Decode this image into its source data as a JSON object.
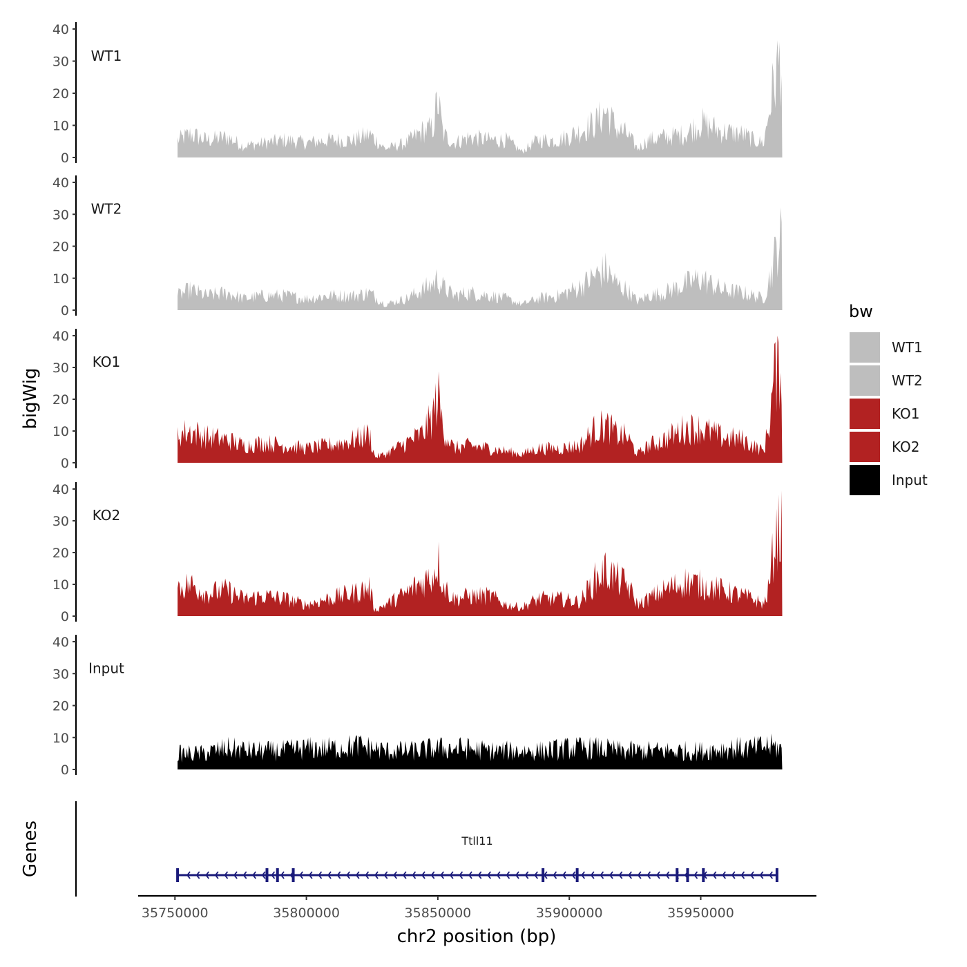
{
  "chart_data": {
    "type": "area",
    "ylabel": "bigWig",
    "xlabel": "chr2 position (bp)",
    "xlim": [
      35736000,
      35994000
    ],
    "ylim": [
      0,
      40
    ],
    "y_ticks": [
      "0",
      "10",
      "20",
      "30",
      "40"
    ],
    "x_ticks": [
      {
        "value": 35750000,
        "label": "35750000"
      },
      {
        "value": 35800000,
        "label": "35800000"
      },
      {
        "value": 35850000,
        "label": "35850000"
      },
      {
        "value": 35900000,
        "label": "35900000"
      },
      {
        "value": 35950000,
        "label": "35950000"
      }
    ],
    "legend": {
      "title": "bw",
      "entries": [
        {
          "label": "WT1",
          "color": "#BEBEBE"
        },
        {
          "label": "WT2",
          "color": "#BEBEBE"
        },
        {
          "label": "KO1",
          "color": "#B22222"
        },
        {
          "label": "KO2",
          "color": "#B22222"
        },
        {
          "label": "Input",
          "color": "#000000"
        }
      ]
    },
    "data_range": [
      35751000,
      35981000
    ],
    "series": [
      {
        "name": "WT1",
        "color": "#BEBEBE",
        "x": [
          35751000,
          35756000,
          35762000,
          35770000,
          35776000,
          35784000,
          35792000,
          35800000,
          35808000,
          35818000,
          35824000,
          35830000,
          35838000,
          35844000,
          35848000,
          35850000,
          35852000,
          35856000,
          35862000,
          35870000,
          35876000,
          35882000,
          35888000,
          35896000,
          35904000,
          35910000,
          35914000,
          35918000,
          35922000,
          35926000,
          35930000,
          35936000,
          35944000,
          35950000,
          35958000,
          35966000,
          35970000,
          35974000,
          35977000,
          35979000,
          35981000
        ],
        "y": [
          6,
          8,
          6,
          7,
          4,
          5,
          6,
          5,
          6,
          6,
          8,
          3,
          5,
          9,
          10,
          20,
          8,
          5,
          7,
          6,
          6,
          2,
          6,
          6,
          9,
          12,
          16,
          10,
          8,
          3,
          6,
          7,
          8,
          12,
          9,
          8,
          6,
          5,
          22,
          30,
          36
        ]
      },
      {
        "name": "WT2",
        "color": "#BEBEBE",
        "x": [
          35751000,
          35756000,
          35762000,
          35770000,
          35776000,
          35784000,
          35792000,
          35800000,
          35808000,
          35818000,
          35824000,
          35830000,
          35838000,
          35844000,
          35848000,
          35850000,
          35852000,
          35856000,
          35862000,
          35870000,
          35876000,
          35882000,
          35888000,
          35896000,
          35904000,
          35910000,
          35914000,
          35918000,
          35922000,
          35926000,
          35930000,
          35936000,
          35944000,
          35950000,
          35958000,
          35966000,
          35970000,
          35974000,
          35977000,
          35979000,
          35981000
        ],
        "y": [
          5,
          7,
          5,
          6,
          4,
          5,
          5,
          4,
          5,
          5,
          6,
          2,
          4,
          7,
          9,
          11,
          8,
          5,
          6,
          5,
          4,
          2,
          4,
          5,
          8,
          12,
          14,
          9,
          7,
          3,
          5,
          6,
          9,
          11,
          7,
          6,
          5,
          4,
          14,
          22,
          26
        ]
      },
      {
        "name": "KO1",
        "color": "#B22222",
        "x": [
          35751000,
          35756000,
          35762000,
          35770000,
          35776000,
          35784000,
          35792000,
          35800000,
          35808000,
          35818000,
          35824000,
          35826000,
          35830000,
          35838000,
          35844000,
          35848000,
          35850000,
          35852000,
          35856000,
          35862000,
          35870000,
          35876000,
          35882000,
          35888000,
          35896000,
          35904000,
          35910000,
          35914000,
          35918000,
          35922000,
          35926000,
          35930000,
          35936000,
          35944000,
          35950000,
          35958000,
          35966000,
          35970000,
          35974000,
          35976000,
          35978000,
          35981000
        ],
        "y": [
          10,
          11,
          9,
          8,
          6,
          7,
          6,
          5,
          6,
          8,
          10,
          2,
          3,
          7,
          10,
          16,
          24,
          12,
          5,
          6,
          5,
          4,
          3,
          5,
          5,
          6,
          12,
          13,
          10,
          9,
          3,
          6,
          8,
          12,
          12,
          9,
          8,
          6,
          4,
          14,
          30,
          38
        ]
      },
      {
        "name": "KO2",
        "color": "#B22222",
        "x": [
          35751000,
          35756000,
          35762000,
          35770000,
          35776000,
          35784000,
          35792000,
          35800000,
          35808000,
          35818000,
          35824000,
          35826000,
          35830000,
          35838000,
          35844000,
          35848000,
          35850000,
          35852000,
          35856000,
          35862000,
          35870000,
          35876000,
          35882000,
          35888000,
          35896000,
          35904000,
          35910000,
          35914000,
          35918000,
          35922000,
          35926000,
          35930000,
          35936000,
          35944000,
          35950000,
          35958000,
          35966000,
          35970000,
          35974000,
          35976000,
          35978000,
          35981000
        ],
        "y": [
          10,
          11,
          8,
          9,
          6,
          7,
          6,
          4,
          6,
          8,
          10,
          2,
          4,
          8,
          12,
          14,
          20,
          11,
          6,
          7,
          7,
          4,
          3,
          6,
          6,
          5,
          13,
          16,
          13,
          11,
          4,
          6,
          9,
          12,
          11,
          9,
          7,
          6,
          4,
          10,
          26,
          32
        ]
      },
      {
        "name": "Input",
        "color": "#000000",
        "x": [
          35751000,
          35760000,
          35770000,
          35780000,
          35790000,
          35800000,
          35810000,
          35820000,
          35830000,
          35840000,
          35850000,
          35860000,
          35870000,
          35880000,
          35890000,
          35900000,
          35910000,
          35920000,
          35930000,
          35940000,
          35950000,
          35960000,
          35970000,
          35975000,
          35981000
        ],
        "y": [
          6,
          6,
          8,
          7,
          7,
          8,
          8,
          9,
          7,
          7,
          8,
          8,
          7,
          7,
          7,
          8,
          8,
          7,
          7,
          7,
          7,
          8,
          8,
          9,
          8
        ]
      }
    ],
    "genes": {
      "title": "Genes",
      "items": [
        {
          "name": "Ttll11",
          "start": 35751000,
          "end": 35979000,
          "strand": "-",
          "exons": [
            35751000,
            35785000,
            35795000,
            35789000,
            35890000,
            35903000,
            35941000,
            35945000,
            35951000,
            35979000
          ]
        }
      ]
    }
  }
}
